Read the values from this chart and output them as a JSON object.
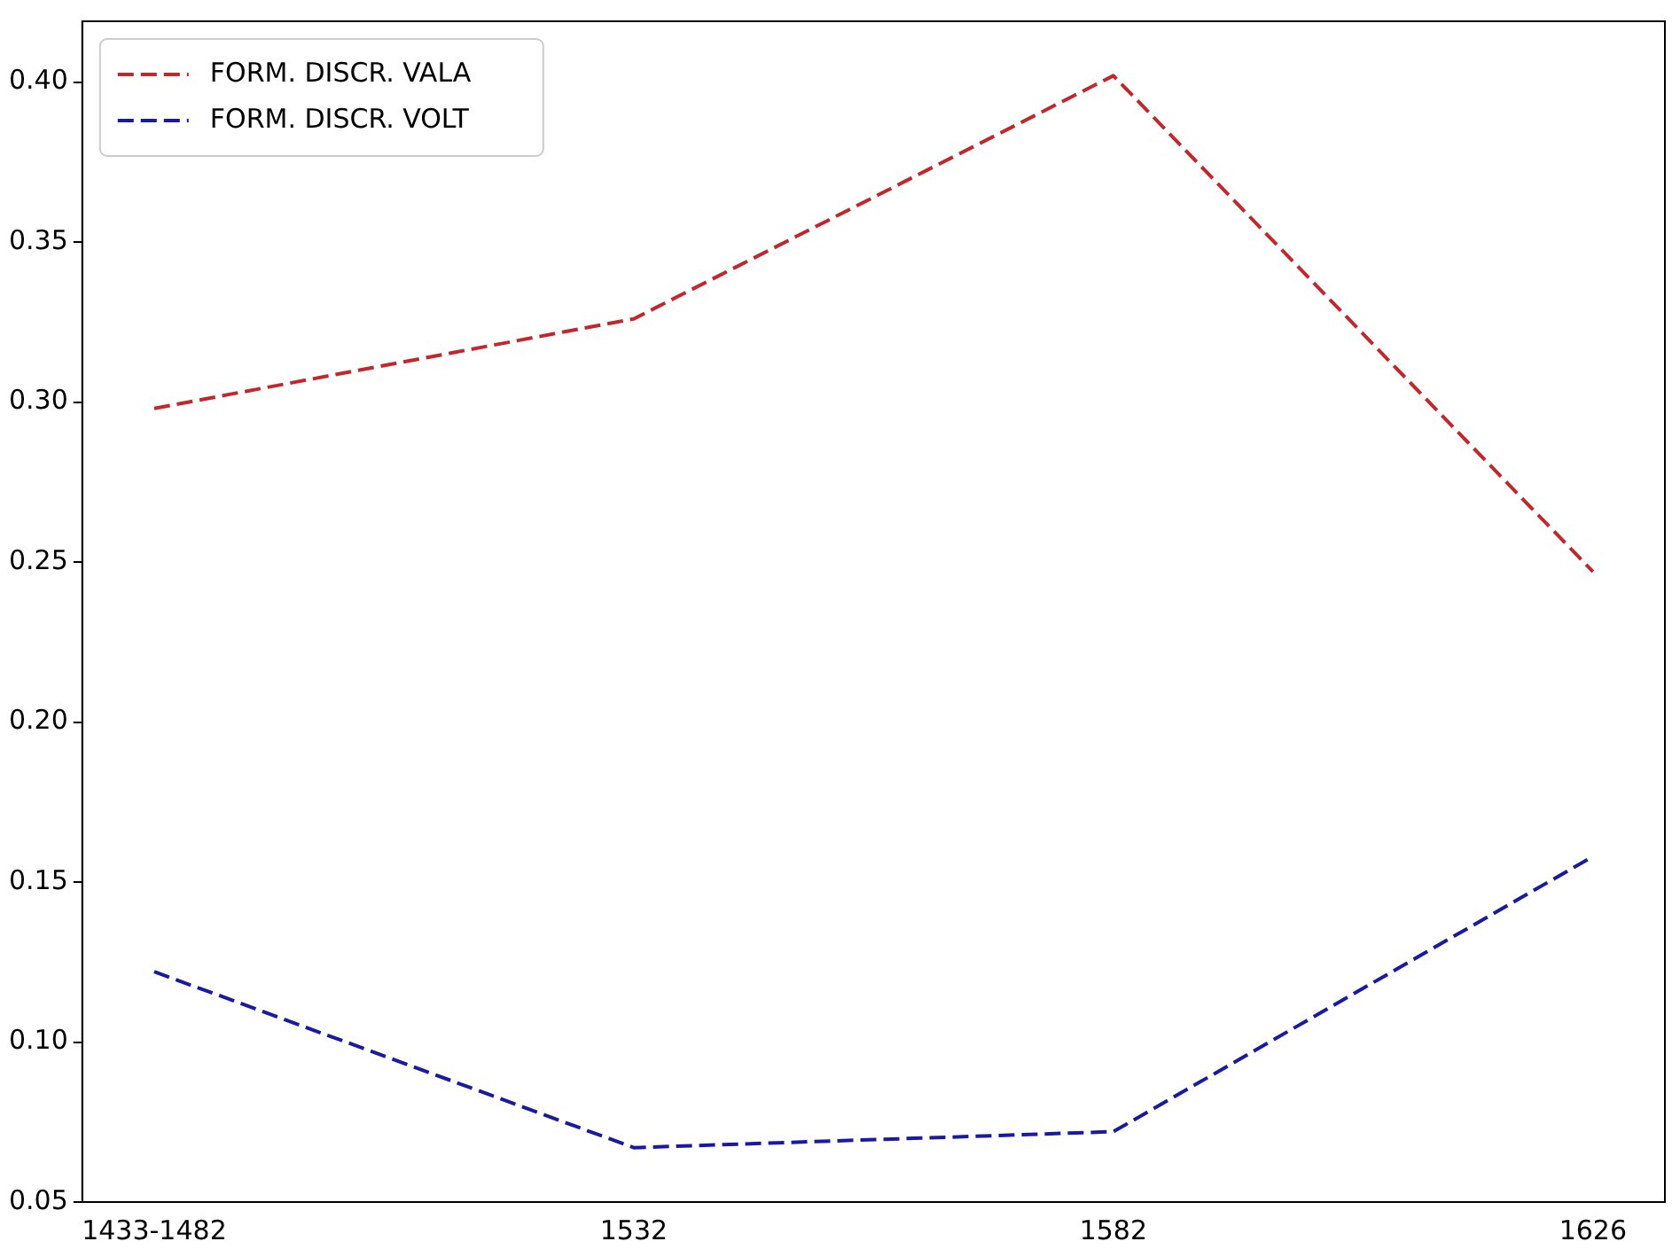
{
  "chart_data": {
    "type": "line",
    "categories": [
      "1433-1482",
      "1532",
      "1582",
      "1626"
    ],
    "series": [
      {
        "name": "FORM. DISCR. VALA",
        "color": "#c0282d",
        "values": [
          0.298,
          0.326,
          0.402,
          0.247
        ]
      },
      {
        "name": "FORM. DISCR. VOLT",
        "color": "#1a1aa0",
        "values": [
          0.122,
          0.067,
          0.072,
          0.158
        ]
      }
    ],
    "ylim": [
      0.05,
      0.419
    ],
    "yticks": [
      0.05,
      {
        "value": 0.1,
        "label": "0.10"
      },
      0.15,
      {
        "value": 0.2,
        "label": "0.20"
      },
      0.25,
      {
        "value": 0.3,
        "label": "0.30"
      },
      0.35,
      {
        "value": 0.4,
        "label": "0.40"
      }
    ],
    "grid": false,
    "legend": "top left",
    "line_style": "dashed",
    "marker": "none"
  }
}
